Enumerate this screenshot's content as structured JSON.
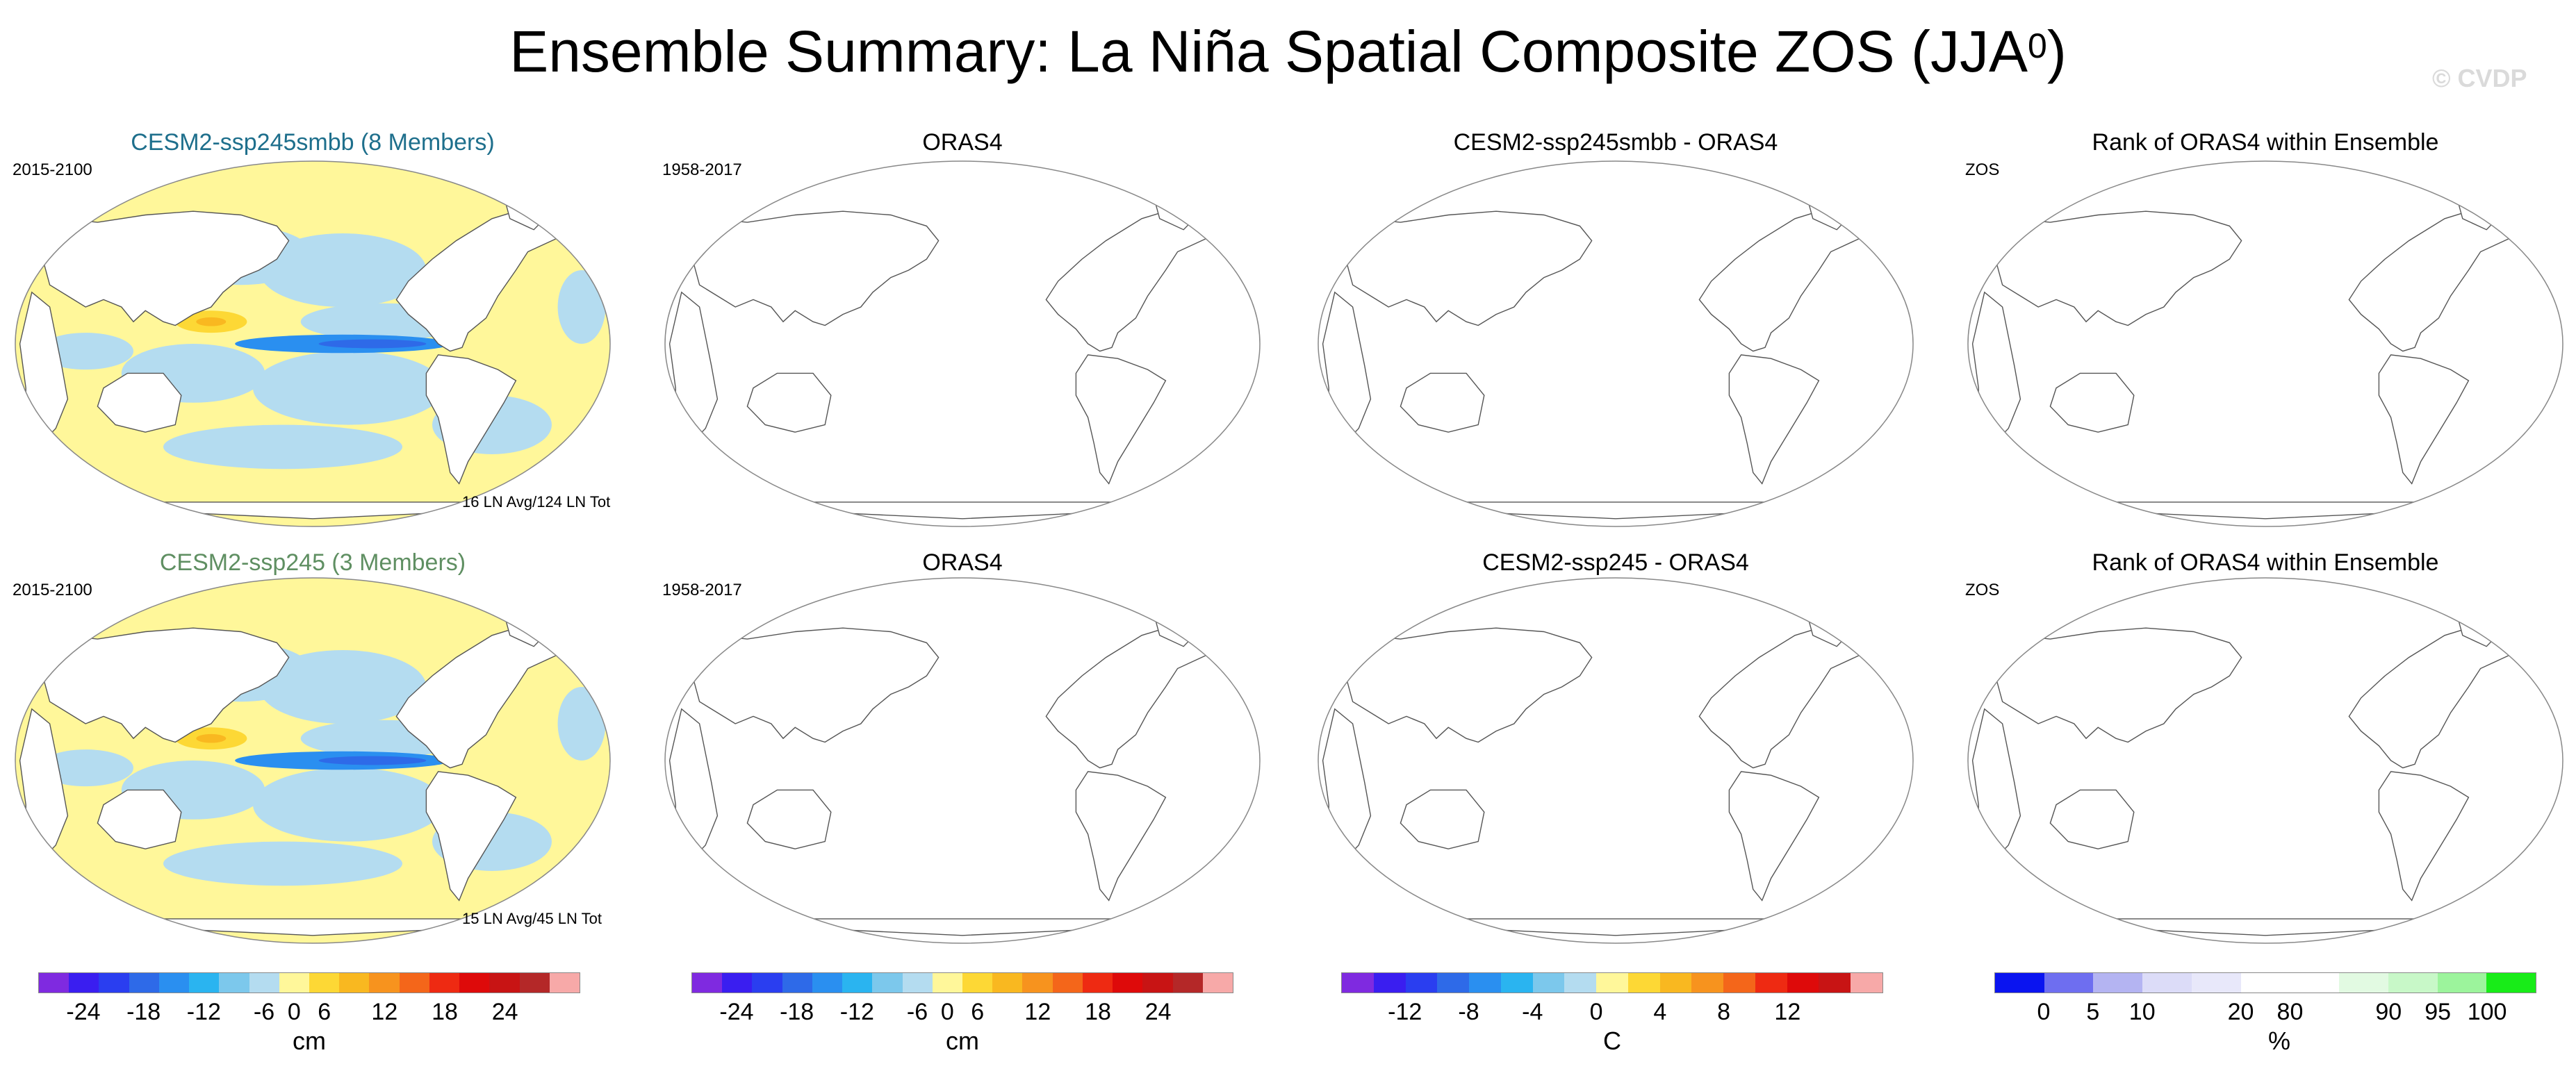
{
  "title": "Ensemble Summary: La Niña Spatial Composite ZOS (JJA",
  "title_sup": "0",
  "title_close": ")",
  "watermark": "© CVDP",
  "panels": [
    {
      "title": "CESM2-ssp245smbb (8 Members)",
      "title_color": "#1e6f8c",
      "left_label": "2015-2100",
      "bottom_label": "16 LN Avg/124 LN Tot",
      "filled": true
    },
    {
      "title": "ORAS4",
      "left_label": "1958-2017",
      "filled": false
    },
    {
      "title": "CESM2-ssp245smbb - ORAS4",
      "filled": false
    },
    {
      "title": "Rank of ORAS4 within Ensemble",
      "left_label": "ZOS",
      "filled": false
    },
    {
      "title": "CESM2-ssp245 (3 Members)",
      "title_color": "#5f8f62",
      "left_label": "2015-2100",
      "bottom_label": "15 LN Avg/45 LN Tot",
      "filled": true
    },
    {
      "title": "ORAS4",
      "left_label": "1958-2017",
      "filled": false
    },
    {
      "title": "CESM2-ssp245 - ORAS4",
      "filled": false
    },
    {
      "title": "Rank of ORAS4 within Ensemble",
      "left_label": "ZOS",
      "filled": false
    }
  ],
  "colorbars": [
    {
      "unit": "cm",
      "ticks": [
        "-24",
        "-18",
        "-12",
        "-6",
        "0",
        "6",
        "12",
        "18",
        "24"
      ],
      "colors": [
        "#7f2ae0",
        "#3a1ef0",
        "#2a3ef0",
        "#2e6ae8",
        "#2a8ff0",
        "#2ab4f0",
        "#7cc8ec",
        "#b4dcf0",
        "#fff79a",
        "#fdd835",
        "#f9b820",
        "#f7931e",
        "#f4661a",
        "#ee2a12",
        "#de0a0a",
        "#c81414",
        "#b42828",
        "#f7a9a8"
      ]
    },
    {
      "unit": "cm",
      "ticks": [
        "-24",
        "-18",
        "-12",
        "-6",
        "0",
        "6",
        "12",
        "18",
        "24"
      ],
      "colors": [
        "#7f2ae0",
        "#3a1ef0",
        "#2a3ef0",
        "#2e6ae8",
        "#2a8ff0",
        "#2ab4f0",
        "#7cc8ec",
        "#b4dcf0",
        "#fff79a",
        "#fdd835",
        "#f9b820",
        "#f7931e",
        "#f4661a",
        "#ee2a12",
        "#de0a0a",
        "#c81414",
        "#b42828",
        "#f7a9a8"
      ]
    },
    {
      "unit": "C",
      "ticks": [
        "-12",
        "-8",
        "-4",
        "0",
        "4",
        "8",
        "12"
      ],
      "colors": [
        "#7f2ae0",
        "#3a1ef0",
        "#2a3ef0",
        "#2e6ae8",
        "#2a8ff0",
        "#2ab4f0",
        "#7cc8ec",
        "#b4dcf0",
        "#fff79a",
        "#fdd835",
        "#f9b820",
        "#f7931e",
        "#f4661a",
        "#ee2a12",
        "#de0a0a",
        "#c81414",
        "#f7a9a8"
      ]
    },
    {
      "unit": "%",
      "ticks": [
        "0",
        "5",
        "10",
        "20",
        "80",
        "90",
        "95",
        "100"
      ],
      "colors": [
        "#0a14f0",
        "#6e6ef0",
        "#b4b4f2",
        "#dcdcf8",
        "#e8e8fa",
        "#ffffff",
        "#ffffff",
        "#e2fae2",
        "#c8f8c8",
        "#9cf49c",
        "#18ec18"
      ]
    }
  ],
  "colors": {
    "anomaly_pos": "#fff79a",
    "anomaly_neg": "#b4dcf0",
    "strong_pos": "#fdd835",
    "strong_neg": "#2a8ff0",
    "land": "#ffffff"
  }
}
